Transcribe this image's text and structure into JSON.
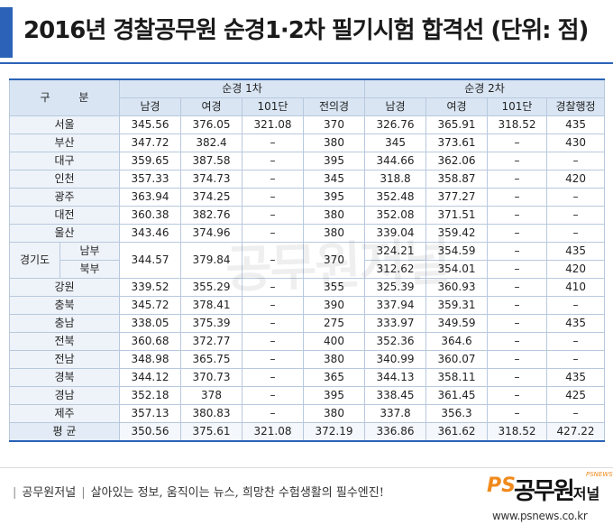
{
  "title": "2016년 경찰공무원 순경1·2차 필기시험 합격선 (단위: 점)",
  "colors": {
    "accent": "#2c63b8",
    "header_bg": "#d9e5f3",
    "logo_orange": "#f08a1c"
  },
  "table": {
    "corner_label": "구 분",
    "group1": "순경 1차",
    "group2": "순경 2차",
    "sub_headers": [
      "남경",
      "여경",
      "101단",
      "전의경",
      "남경",
      "여경",
      "101단",
      "경찰행정"
    ],
    "rows": [
      {
        "region": "서울",
        "cells": [
          "345.56",
          "376.05",
          "321.08",
          "370",
          "326.76",
          "365.91",
          "318.52",
          "435"
        ]
      },
      {
        "region": "부산",
        "cells": [
          "347.72",
          "382.4",
          "–",
          "380",
          "345",
          "373.61",
          "–",
          "430"
        ]
      },
      {
        "region": "대구",
        "cells": [
          "359.65",
          "387.58",
          "–",
          "395",
          "344.66",
          "362.06",
          "–",
          "–"
        ]
      },
      {
        "region": "인천",
        "cells": [
          "357.33",
          "374.73",
          "–",
          "345",
          "318.8",
          "358.87",
          "–",
          "420"
        ]
      },
      {
        "region": "광주",
        "cells": [
          "363.94",
          "374.25",
          "–",
          "395",
          "352.48",
          "377.27",
          "–",
          "–"
        ]
      },
      {
        "region": "대전",
        "cells": [
          "360.38",
          "382.76",
          "–",
          "380",
          "352.08",
          "371.51",
          "–",
          "–"
        ]
      },
      {
        "region": "울산",
        "cells": [
          "343.46",
          "374.96",
          "–",
          "380",
          "339.04",
          "359.42",
          "–",
          "–"
        ]
      }
    ],
    "gyeonggi": {
      "label": "경기도",
      "sub1": "남부",
      "sub2": "북부",
      "merged": [
        "344.57",
        "379.84",
        "–",
        "370"
      ],
      "nambu": [
        "324.21",
        "354.59",
        "–",
        "435"
      ],
      "bukbu": [
        "312.62",
        "354.01",
        "–",
        "420"
      ]
    },
    "rows2": [
      {
        "region": "강원",
        "cells": [
          "339.52",
          "355.29",
          "–",
          "355",
          "325.39",
          "360.93",
          "–",
          "410"
        ]
      },
      {
        "region": "충북",
        "cells": [
          "345.72",
          "378.41",
          "–",
          "390",
          "337.94",
          "359.31",
          "–",
          "–"
        ]
      },
      {
        "region": "충남",
        "cells": [
          "338.05",
          "375.39",
          "–",
          "275",
          "333.97",
          "349.59",
          "–",
          "435"
        ]
      },
      {
        "region": "전북",
        "cells": [
          "360.68",
          "372.77",
          "–",
          "400",
          "352.36",
          "364.6",
          "–",
          "–"
        ]
      },
      {
        "region": "전남",
        "cells": [
          "348.98",
          "365.75",
          "–",
          "380",
          "340.99",
          "360.07",
          "–",
          "–"
        ]
      },
      {
        "region": "경북",
        "cells": [
          "344.12",
          "370.73",
          "–",
          "365",
          "344.13",
          "358.11",
          "–",
          "435"
        ]
      },
      {
        "region": "경남",
        "cells": [
          "352.18",
          "378",
          "–",
          "395",
          "338.45",
          "361.45",
          "–",
          "425"
        ]
      },
      {
        "region": "제주",
        "cells": [
          "357.13",
          "380.83",
          "–",
          "380",
          "337.8",
          "356.3",
          "–",
          "–"
        ]
      }
    ],
    "average": {
      "region": "평 균",
      "cells": [
        "350.56",
        "375.61",
        "321.08",
        "372.19",
        "336.86",
        "361.62",
        "318.52",
        "427.22"
      ]
    }
  },
  "watermark": "공무원저널",
  "footer": {
    "brand": "공무원저널",
    "slogan": "살아있는 정보, 움직이는 뉴스, 희망찬 수험생활의 필수엔진!"
  },
  "logo": {
    "ps": "PS",
    "main": "공무원",
    "tail": "저널",
    "small": "PSNEWS"
  },
  "url": "www.psnews.co.kr"
}
